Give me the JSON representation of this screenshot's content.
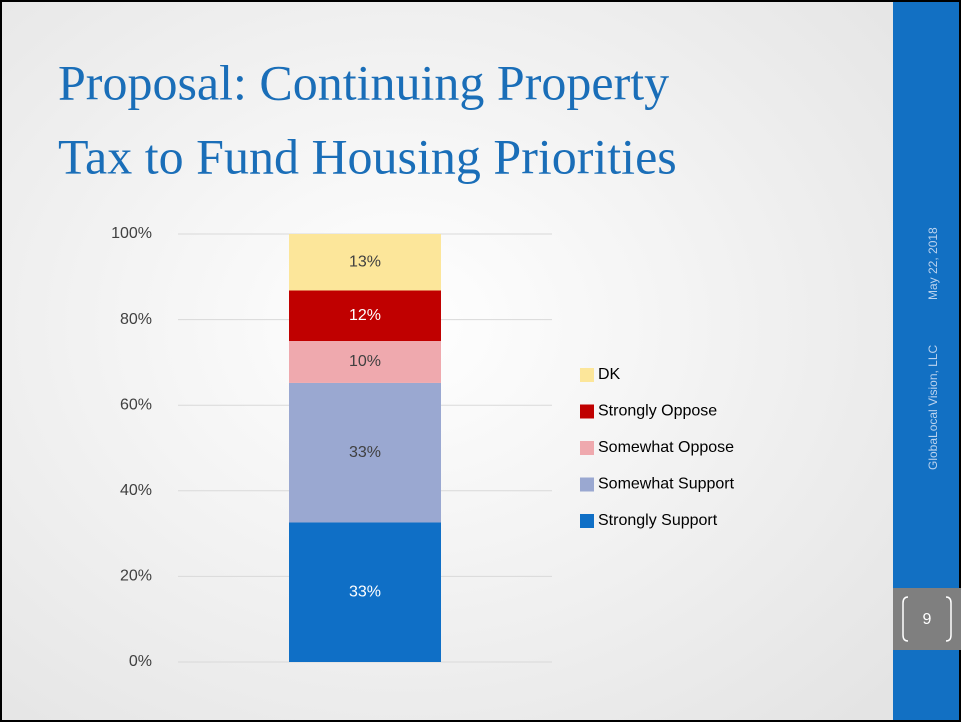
{
  "slide": {
    "title_lines": [
      "Proposal: Continuing Property",
      "Tax to Fund Housing Priorities"
    ],
    "footer_company": "GlobaLocal Vision, LLC",
    "footer_date": "May 22, 2018",
    "page_number": "9"
  },
  "chart_data": {
    "type": "stacked_bar",
    "categories": [
      null
    ],
    "series": [
      {
        "name": "Strongly Support",
        "color": "#0f6fc6",
        "label_color": "#ffffff",
        "values": [
          32.6
        ],
        "value_labels": [
          "33%"
        ]
      },
      {
        "name": "Somewhat Support",
        "color": "#9aa8d1",
        "label_color": "#404040",
        "values": [
          32.6
        ],
        "value_labels": [
          "33%"
        ]
      },
      {
        "name": "Somewhat Oppose",
        "color": "#efa9ae",
        "label_color": "#404040",
        "values": [
          9.8
        ],
        "value_labels": [
          "10%"
        ]
      },
      {
        "name": "Strongly Oppose",
        "color": "#c00000",
        "label_color": "#ffffff",
        "values": [
          11.8
        ],
        "value_labels": [
          "12%"
        ]
      },
      {
        "name": "DK",
        "color": "#fce69a",
        "label_color": "#404040",
        "values": [
          13.2
        ],
        "value_labels": [
          "13%"
        ]
      }
    ],
    "ylim": [
      0,
      100
    ],
    "yticks": [
      {
        "value": 0,
        "label": "0%"
      },
      {
        "value": 20,
        "label": "20%"
      },
      {
        "value": 40,
        "label": "40%"
      },
      {
        "value": 60,
        "label": "60%"
      },
      {
        "value": 80,
        "label": "80%"
      },
      {
        "value": 100,
        "label": "100%"
      }
    ],
    "grid": true,
    "legend": "right"
  }
}
